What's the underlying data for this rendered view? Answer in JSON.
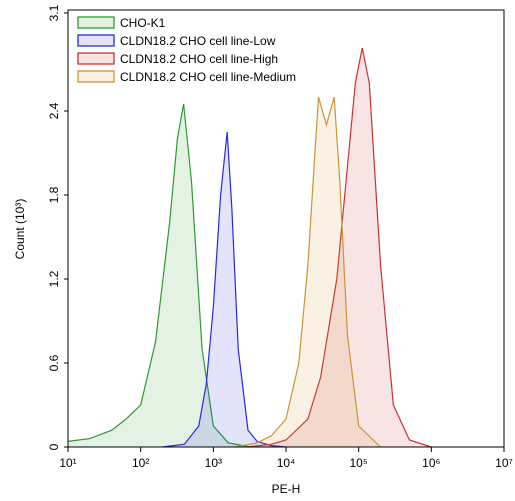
{
  "chart_data": {
    "type": "area",
    "x_label": "PE-H",
    "y_label": "Count (10³)",
    "xlim": [
      10,
      10000000
    ],
    "xticks": [
      {
        "value": 10,
        "label": "10¹"
      },
      {
        "value": 100,
        "label": "10²"
      },
      {
        "value": 1000,
        "label": "10³"
      },
      {
        "value": 10000,
        "label": "10⁴"
      },
      {
        "value": 100000,
        "label": "10⁵"
      },
      {
        "value": 1000000,
        "label": "10⁶"
      },
      {
        "value": 10000000,
        "label": "10⁷"
      }
    ],
    "x_scale": "log",
    "ylim": [
      0,
      3.1
    ],
    "yticks": [
      0,
      0.6,
      1.2,
      1.8,
      2.4,
      3.1
    ],
    "legend": "top-left",
    "series": [
      {
        "name": "CHO-K1",
        "color": "#2e9a2e",
        "x": [
          10,
          20,
          40,
          63,
          100,
          160,
          250,
          320,
          390,
          500,
          700,
          1000,
          1600,
          3200
        ],
        "values": [
          0.04,
          0.06,
          0.12,
          0.2,
          0.3,
          0.75,
          1.6,
          2.2,
          2.45,
          1.9,
          0.7,
          0.15,
          0.03,
          0
        ]
      },
      {
        "name": "CLDN18.2 CHO cell line-Low",
        "color": "#2828e0",
        "x": [
          200,
          400,
          630,
          800,
          1000,
          1260,
          1550,
          1800,
          2200,
          3000,
          4000,
          6300,
          10000
        ],
        "values": [
          0,
          0.02,
          0.15,
          0.45,
          1.0,
          1.8,
          2.25,
          1.7,
          0.7,
          0.12,
          0.04,
          0.01,
          0
        ]
      },
      {
        "name": "CLDN18.2 CHO cell line-High",
        "color": "#c83232",
        "x": [
          3000,
          6300,
          10000,
          20000,
          30000,
          50000,
          70000,
          90000,
          112000,
          140000,
          200000,
          300000,
          500000,
          1000000
        ],
        "values": [
          0,
          0.02,
          0.05,
          0.2,
          0.5,
          1.2,
          2.0,
          2.6,
          2.85,
          2.6,
          1.3,
          0.3,
          0.05,
          0
        ]
      },
      {
        "name": "CLDN18.2 CHO cell line-Medium",
        "color": "#c89632",
        "x": [
          2000,
          4000,
          6300,
          10000,
          15000,
          20000,
          25000,
          28000,
          36000,
          46000,
          55000,
          70000,
          100000,
          200000
        ],
        "values": [
          0,
          0.03,
          0.08,
          0.2,
          0.6,
          1.3,
          2.1,
          2.5,
          2.3,
          2.5,
          1.9,
          0.8,
          0.15,
          0
        ]
      }
    ]
  }
}
